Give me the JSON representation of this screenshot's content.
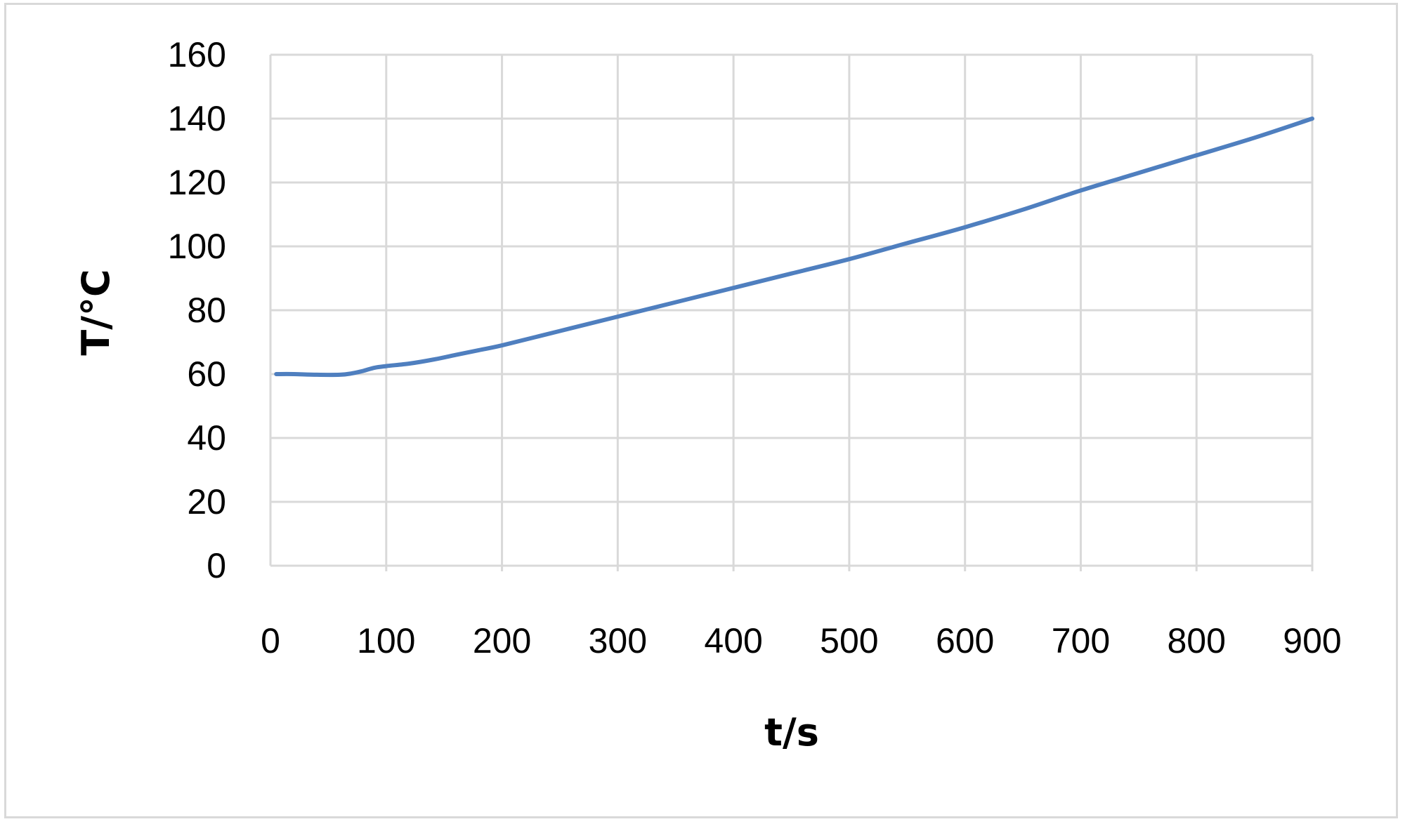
{
  "chart_data": {
    "type": "line",
    "title": "",
    "xlabel": "t/s",
    "ylabel": "T/°C",
    "xlim": [
      0,
      900
    ],
    "ylim": [
      0,
      160
    ],
    "x_ticks": [
      0,
      100,
      200,
      300,
      400,
      500,
      600,
      700,
      800,
      900
    ],
    "y_ticks": [
      0,
      20,
      40,
      60,
      80,
      100,
      120,
      140,
      160
    ],
    "grid": true,
    "legend": "none",
    "series": [
      {
        "color": "#4f7fbf",
        "x": [
          5,
          20,
          40,
          60,
          70,
          80,
          90,
          100,
          120,
          140,
          160,
          180,
          200,
          250,
          300,
          350,
          400,
          450,
          500,
          550,
          600,
          650,
          700,
          750,
          800,
          850,
          900
        ],
        "y": [
          60,
          60,
          59.8,
          59.8,
          60.2,
          61,
          62,
          62.5,
          63.3,
          64.5,
          66,
          67.5,
          69,
          73.5,
          78,
          82.5,
          87,
          91.5,
          96,
          101,
          106,
          111.5,
          117.5,
          123,
          128.5,
          134,
          140
        ]
      }
    ]
  }
}
